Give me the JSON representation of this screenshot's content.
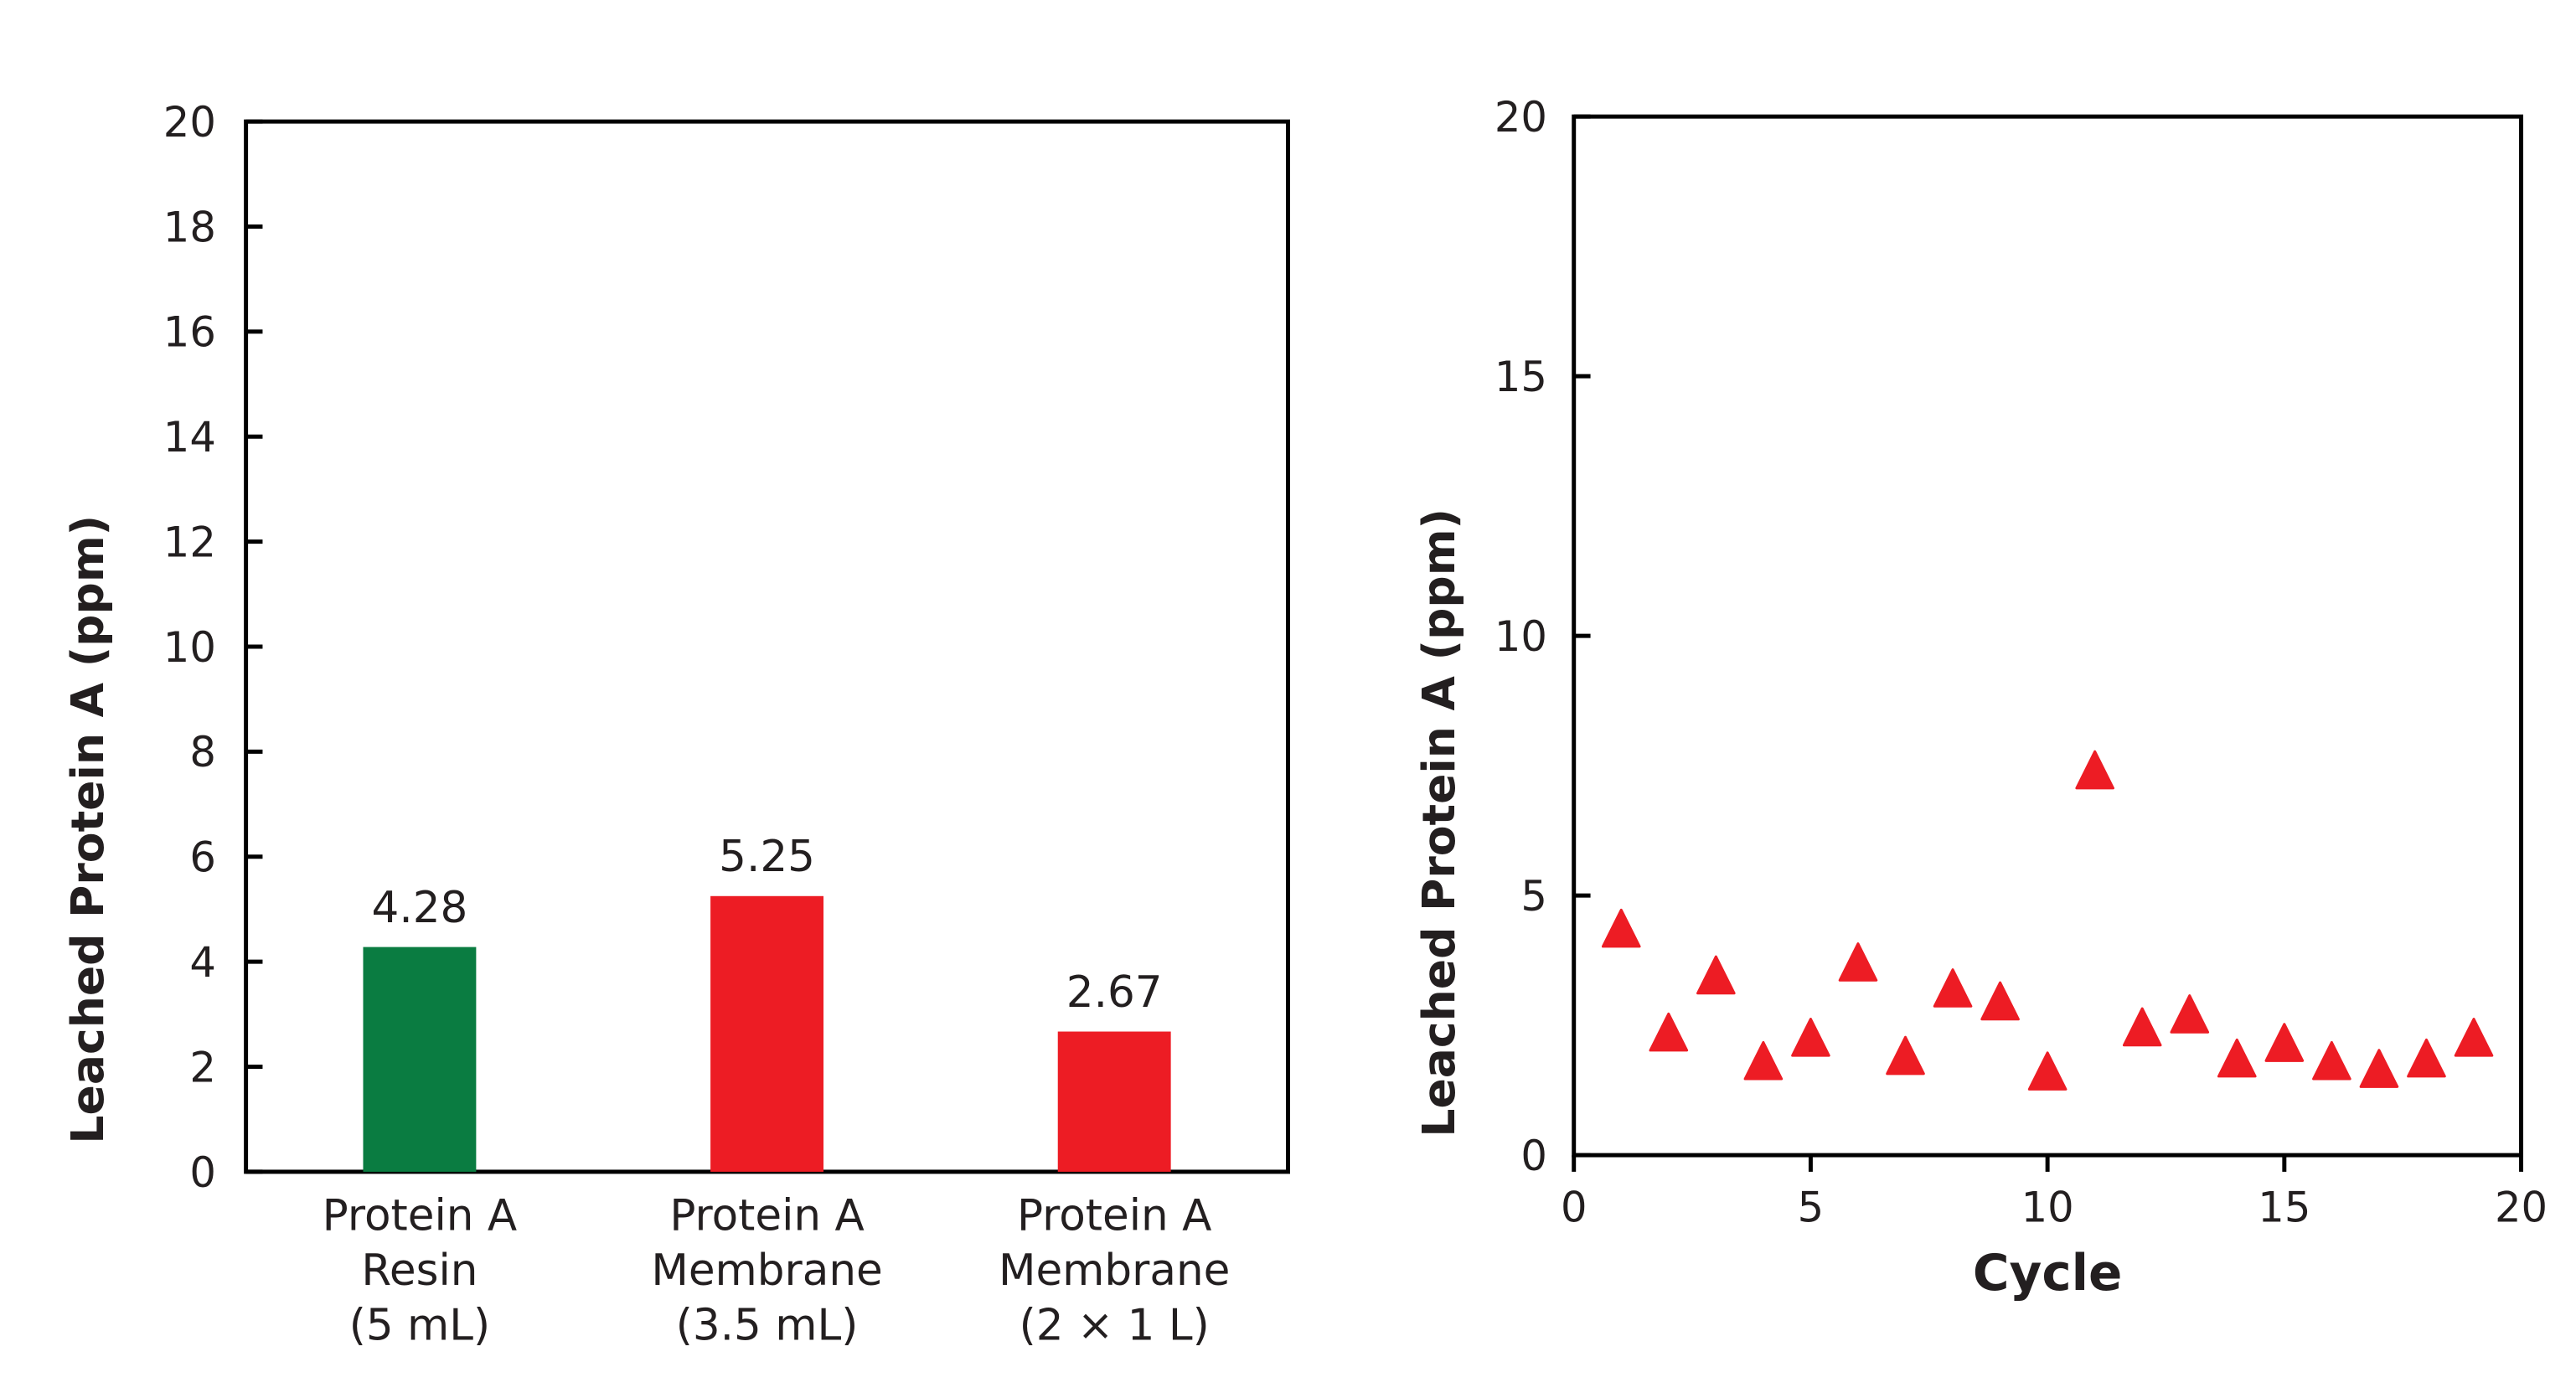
{
  "chart_data": [
    {
      "type": "bar",
      "categories": [
        [
          "Protein A",
          "Resin",
          "(5 mL)"
        ],
        [
          "Protein A",
          "Membrane",
          "(3.5 mL)"
        ],
        [
          "Protein A",
          "Membrane",
          "(2 × 1 L)"
        ]
      ],
      "values": [
        4.28,
        5.25,
        2.67
      ],
      "data_labels": [
        "4.28",
        "5.25",
        "2.67"
      ],
      "colors": [
        "#0a7c41",
        "#ed1c24",
        "#ed1c24"
      ],
      "xlabel": "",
      "ylabel": "Leached Protein A (ppm)",
      "ylim": [
        0,
        20
      ],
      "yticks": [
        0,
        2,
        4,
        6,
        8,
        10,
        12,
        14,
        16,
        18,
        20
      ],
      "grid": false
    },
    {
      "type": "scatter",
      "marker": "triangle",
      "color": "#ed1c24",
      "x": [
        1,
        2,
        3,
        4,
        5,
        6,
        7,
        8,
        9,
        10,
        11,
        12,
        13,
        14,
        15,
        16,
        17,
        18,
        19
      ],
      "y": [
        4.3,
        2.3,
        3.4,
        1.75,
        2.2,
        3.65,
        1.85,
        3.15,
        2.9,
        1.55,
        7.35,
        2.4,
        2.65,
        1.8,
        2.1,
        1.75,
        1.6,
        1.8,
        2.2
      ],
      "xlabel": "Cycle",
      "ylabel": "Leached Protein A (ppm)",
      "xlim": [
        0,
        20
      ],
      "ylim": [
        0,
        20
      ],
      "xticks": [
        0,
        5,
        10,
        15,
        20
      ],
      "yticks": [
        0,
        5,
        10,
        15,
        20
      ],
      "grid": false
    }
  ]
}
